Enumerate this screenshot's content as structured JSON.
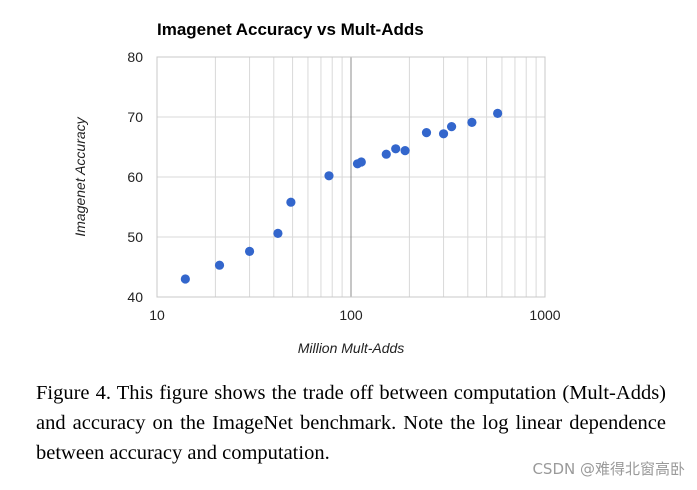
{
  "chart_data": {
    "type": "scatter",
    "title": "Imagenet Accuracy vs Mult-Adds",
    "xlabel": "Million Mult-Adds",
    "ylabel": "Imagenet Accuracy",
    "x_scale": "log",
    "xlim": [
      10,
      1000
    ],
    "ylim": [
      40,
      80
    ],
    "x_ticks": [
      "10",
      "100",
      "1000"
    ],
    "y_ticks": [
      "40",
      "50",
      "60",
      "70",
      "80"
    ],
    "grid": true,
    "legend": "none",
    "point_color": "#3366cc",
    "points": [
      {
        "x": 14,
        "y": 43.0
      },
      {
        "x": 21,
        "y": 45.3
      },
      {
        "x": 30,
        "y": 47.6
      },
      {
        "x": 42,
        "y": 50.6
      },
      {
        "x": 49,
        "y": 55.8
      },
      {
        "x": 77,
        "y": 60.2
      },
      {
        "x": 108,
        "y": 62.2
      },
      {
        "x": 113,
        "y": 62.5
      },
      {
        "x": 152,
        "y": 63.8
      },
      {
        "x": 170,
        "y": 64.7
      },
      {
        "x": 190,
        "y": 64.4
      },
      {
        "x": 245,
        "y": 67.4
      },
      {
        "x": 300,
        "y": 67.2
      },
      {
        "x": 330,
        "y": 68.4
      },
      {
        "x": 420,
        "y": 69.1
      },
      {
        "x": 570,
        "y": 70.6
      }
    ]
  },
  "caption": "Figure 4. This figure shows the trade off between computation (Mult-Adds) and accuracy on the ImageNet benchmark. Note the log linear dependence between accuracy and computation.",
  "watermark": "CSDN @难得北窗高卧"
}
